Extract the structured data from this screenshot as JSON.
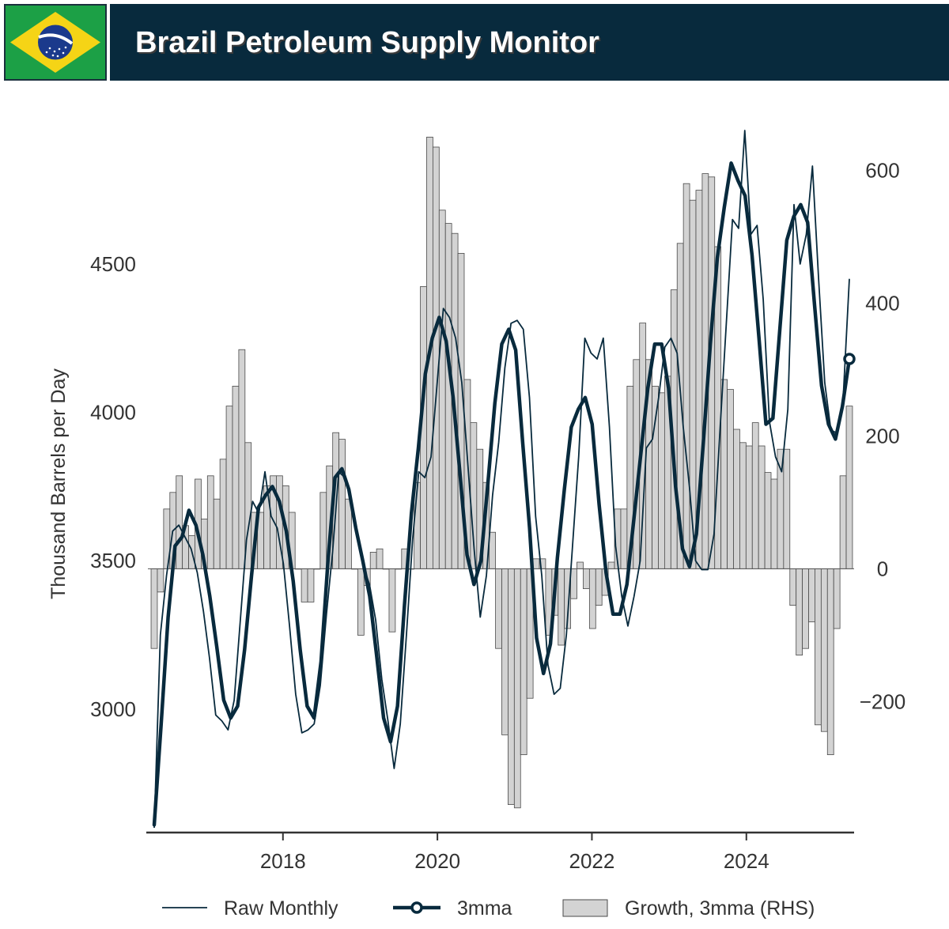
{
  "header": {
    "title": "Brazil Petroleum Supply Monitor",
    "flag_icon": "brazil-flag-icon"
  },
  "colors": {
    "navy": "#082a3d",
    "bar_fill": "#d3d3d3",
    "bar_edge": "#4a4a4a",
    "flag_green": "#1ca046",
    "flag_yellow": "#f5d416",
    "flag_blue": "#1b3a8c"
  },
  "chart_data": {
    "type": "line",
    "ylabel": "Thousand Barrels per Day",
    "x_ticks": [
      "2018",
      "2020",
      "2022",
      "2024"
    ],
    "y_ticks_left": [
      "3000",
      "3500",
      "4000",
      "4500"
    ],
    "y_ticks_right": [
      "−200",
      "0",
      "200",
      "400",
      "600"
    ],
    "ylim_left": [
      2600,
      4950
    ],
    "ylim_right": [
      -390,
      660
    ],
    "legend": {
      "position": "bottom",
      "raw": "Raw Monthly",
      "mma": "3mma",
      "growth": "Growth, 3mma (RHS)"
    },
    "x_start": "2016-05",
    "x_end": "2025-05",
    "raw_monthly": [
      2600,
      3250,
      3450,
      3600,
      3620,
      3580,
      3540,
      3460,
      3330,
      3170,
      2980,
      2960,
      2930,
      3030,
      3300,
      3570,
      3700,
      3660,
      3800,
      3650,
      3610,
      3490,
      3280,
      3050,
      2920,
      2930,
      2950,
      3080,
      3320,
      3530,
      3800,
      3780,
      3700,
      3580,
      3480,
      3420,
      3300,
      3100,
      2960,
      2800,
      2950,
      3250,
      3570,
      3800,
      3780,
      3850,
      4100,
      4350,
      4320,
      4250,
      4100,
      3820,
      3540,
      3310,
      3450,
      3720,
      3900,
      4150,
      4300,
      4310,
      4280,
      4050,
      3650,
      3450,
      3150,
      3050,
      3070,
      3250,
      3550,
      3850,
      4250,
      4200,
      4180,
      4250,
      3950,
      3550,
      3380,
      3280,
      3380,
      3500,
      3880,
      3910,
      4050,
      4220,
      4250,
      4200,
      3950,
      3750,
      3500,
      3470,
      3470,
      3590,
      3950,
      4300,
      4650,
      4620,
      4950,
      4600,
      4630,
      4380,
      3970,
      3850,
      3800,
      4010,
      4700,
      4500,
      4600,
      4830,
      4450,
      4100,
      3940,
      3930,
      4050,
      4450
    ],
    "mma": [
      2610,
      2950,
      3310,
      3550,
      3580,
      3670,
      3620,
      3520,
      3380,
      3210,
      3030,
      2970,
      3010,
      3200,
      3450,
      3680,
      3720,
      3750,
      3700,
      3600,
      3430,
      3200,
      3010,
      2970,
      3160,
      3500,
      3780,
      3810,
      3740,
      3610,
      3500,
      3380,
      3180,
      2970,
      2890,
      3010,
      3350,
      3660,
      3880,
      4130,
      4250,
      4320,
      4240,
      4050,
      3790,
      3520,
      3420,
      3500,
      3760,
      4030,
      4230,
      4280,
      4210,
      3900,
      3610,
      3240,
      3120,
      3220,
      3510,
      3740,
      3950,
      4010,
      4050,
      3960,
      3690,
      3460,
      3320,
      3320,
      3420,
      3640,
      3860,
      4080,
      4230,
      4230,
      4080,
      3750,
      3540,
      3480,
      3590,
      3900,
      4230,
      4520,
      4690,
      4840,
      4780,
      4730,
      4530,
      4250,
      3960,
      3980,
      4280,
      4580,
      4660,
      4700,
      4640,
      4360,
      4090,
      3960,
      3910,
      4020,
      4180
    ],
    "growth_rhs": [
      -120,
      -35,
      90,
      115,
      140,
      65,
      50,
      135,
      75,
      140,
      105,
      165,
      245,
      275,
      330,
      190,
      85,
      85,
      125,
      140,
      140,
      125,
      85,
      0,
      -50,
      -50,
      0,
      115,
      155,
      205,
      195,
      105,
      0,
      -100,
      -25,
      25,
      30,
      0,
      -95,
      0,
      30,
      0,
      130,
      425,
      650,
      635,
      540,
      520,
      505,
      475,
      285,
      220,
      180,
      130,
      55,
      -120,
      -250,
      -355,
      -360,
      -280,
      -195,
      15,
      15,
      -100,
      -70,
      -115,
      -90,
      -45,
      10,
      -30,
      -90,
      -55,
      -40,
      10,
      90,
      90,
      275,
      315,
      370,
      315,
      275,
      265,
      290,
      420,
      490,
      580,
      555,
      570,
      595,
      590,
      485,
      285,
      270,
      210,
      190,
      185,
      220,
      185,
      145,
      135,
      180,
      180,
      -55,
      -130,
      -120,
      -80,
      -235,
      -245,
      -280,
      -90,
      140,
      245
    ]
  }
}
